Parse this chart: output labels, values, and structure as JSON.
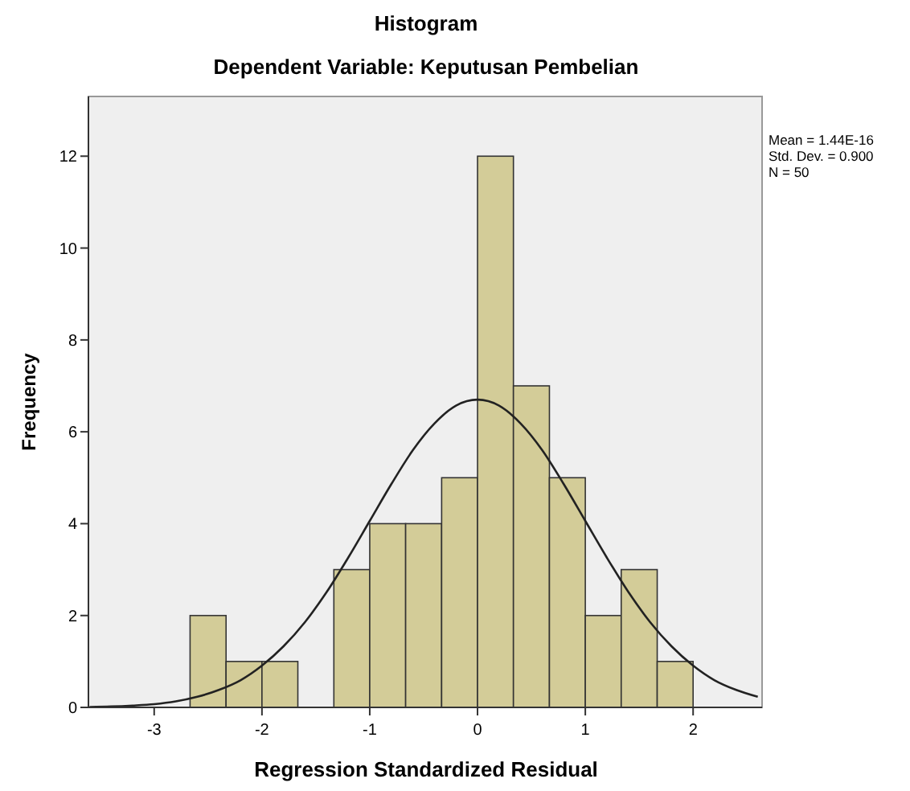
{
  "chart_data": {
    "type": "histogram",
    "title": "Histogram",
    "subtitle": "Dependent Variable: Keputusan Pembelian",
    "xlabel": "Regression Standardized Residual",
    "ylabel": "Frequency",
    "annotations": [
      "Mean = 1.44E-16",
      "Std. Dev. = 0.900",
      "N = 50"
    ],
    "bins": [
      -2.667,
      -2.333,
      -2,
      -1.667,
      -1.333,
      -1,
      -0.667,
      -0.333,
      0,
      0.333,
      0.667,
      1,
      1.333,
      1.667,
      2
    ],
    "xlim": [
      -3.61,
      2.64
    ],
    "xticks": [
      -3,
      -2,
      -1,
      0,
      1,
      2
    ],
    "ylim": [
      0,
      13.3
    ],
    "yticks": [
      0,
      2,
      4,
      6,
      8,
      10,
      12
    ],
    "grid": false,
    "series": [
      {
        "color": "#d3cc98",
        "values": [
          2,
          1,
          1,
          0,
          3,
          4,
          4,
          5,
          12,
          7,
          5,
          2,
          3,
          1
        ]
      },
      {
        "type": "line",
        "color": "#222222",
        "x": [
          -3.6,
          -3.4,
          -3.2,
          -3,
          -2.8,
          -2.6,
          -2.4,
          -2.2,
          -2,
          -1.8,
          -1.6,
          -1.4,
          -1.2,
          -1,
          -0.8,
          -0.6,
          -0.4,
          -0.2,
          0,
          0.2,
          0.4,
          0.6,
          0.8,
          1,
          1.2,
          1.4,
          1.6,
          1.8,
          2,
          2.2,
          2.4,
          2.6
        ],
        "values": [
          0.01,
          0.02,
          0.04,
          0.07,
          0.13,
          0.23,
          0.38,
          0.59,
          0.91,
          1.33,
          1.86,
          2.51,
          3.26,
          4.06,
          4.86,
          5.6,
          6.18,
          6.57,
          6.7,
          6.57,
          6.18,
          5.6,
          4.86,
          4.06,
          3.26,
          2.51,
          1.86,
          1.33,
          0.91,
          0.59,
          0.38,
          0.23
        ]
      }
    ]
  }
}
